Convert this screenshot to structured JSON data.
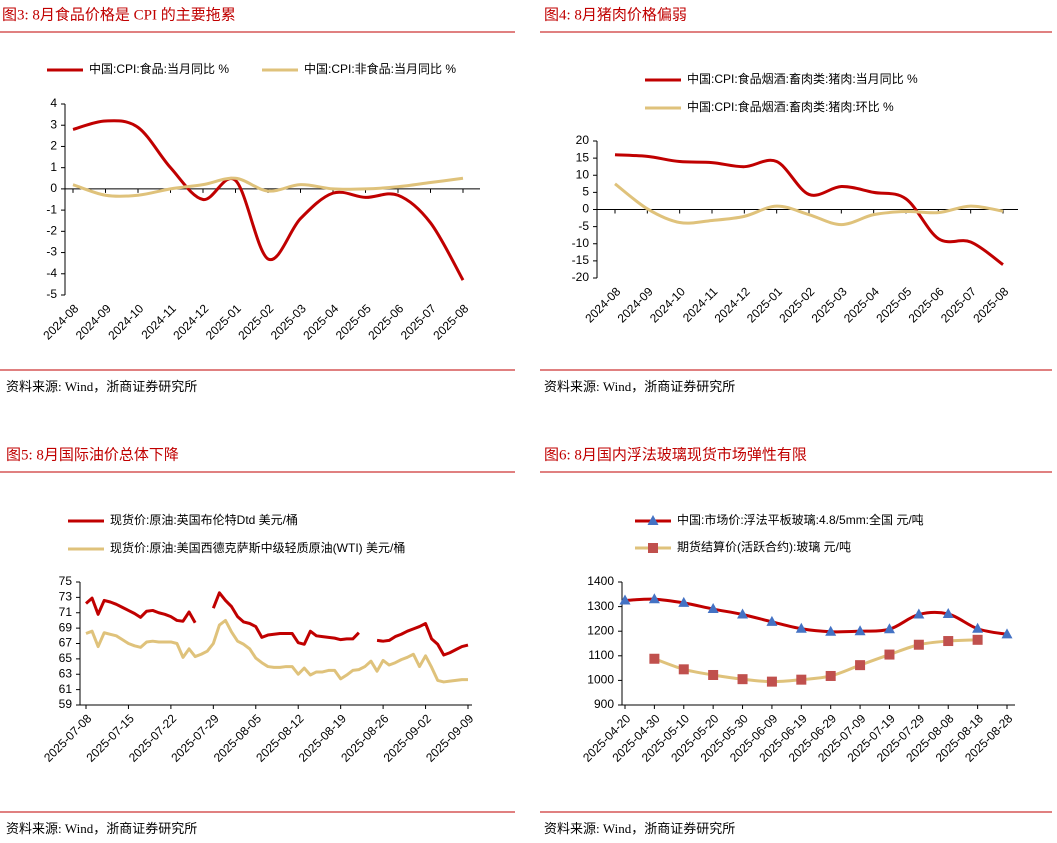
{
  "chart_data": [
    {
      "type": "line",
      "title": "图3:  8月食品价格是 CPI 的主要拖累",
      "source": "资料来源:  Wind，浙商证券研究所",
      "smooth": true,
      "categories": [
        "2024-08",
        "2024-09",
        "2024-10",
        "2024-11",
        "2024-12",
        "2025-01",
        "2025-02",
        "2025-03",
        "2025-04",
        "2025-05",
        "2025-06",
        "2025-07",
        "2025-08"
      ],
      "series": [
        {
          "name": "中国:CPI:食品:当月同比 %",
          "color": "#c00000",
          "values": [
            2.8,
            3.2,
            2.9,
            1.0,
            -0.5,
            0.4,
            -3.3,
            -1.4,
            -0.2,
            -0.4,
            -0.3,
            -1.6,
            -4.3
          ]
        },
        {
          "name": "中国:CPI:非食品:当月同比 %",
          "color": "#dfc27b",
          "values": [
            0.2,
            -0.3,
            -0.3,
            0.0,
            0.2,
            0.5,
            -0.1,
            0.2,
            0.0,
            0.0,
            0.1,
            0.3,
            0.5
          ]
        }
      ],
      "ylim": [
        -5,
        4
      ],
      "yticks": [
        -5,
        -4,
        -3,
        -2,
        -1,
        0,
        1,
        2,
        3,
        4
      ]
    },
    {
      "type": "line",
      "title": "图4:  8月猪肉价格偏弱",
      "source": "资料来源:  Wind，浙商证券研究所",
      "smooth": true,
      "categories": [
        "2024-08",
        "2024-09",
        "2024-10",
        "2024-11",
        "2024-12",
        "2025-01",
        "2025-02",
        "2025-03",
        "2025-04",
        "2025-05",
        "2025-06",
        "2025-07",
        "2025-08"
      ],
      "series": [
        {
          "name": "中国:CPI:食品烟酒:畜肉类:猪肉:当月同比 %",
          "color": "#c00000",
          "values": [
            16.0,
            15.5,
            14.0,
            13.7,
            12.5,
            14.0,
            4.4,
            6.7,
            5.0,
            3.1,
            -8.5,
            -9.5,
            -16.1
          ]
        },
        {
          "name": "中国:CPI:食品烟酒:畜肉类:猪肉:环比 %",
          "color": "#dfc27b",
          "values": [
            7.5,
            0.2,
            -3.8,
            -3.2,
            -2.0,
            1.0,
            -1.5,
            -4.4,
            -1.5,
            -0.6,
            -0.9,
            1.0,
            -0.5
          ]
        }
      ],
      "ylim": [
        -20,
        20
      ],
      "yticks": [
        -20,
        -15,
        -10,
        -5,
        0,
        5,
        10,
        15,
        20
      ]
    },
    {
      "type": "line",
      "title": "图5:  8月国际油价总体下降",
      "source": "资料来源:  Wind，浙商证券研究所",
      "smooth": false,
      "categories": [
        "2025-07-08",
        null,
        null,
        null,
        null,
        null,
        null,
        "2025-07-15",
        null,
        null,
        null,
        null,
        null,
        null,
        "2025-07-22",
        null,
        null,
        null,
        null,
        null,
        null,
        "2025-07-29",
        null,
        null,
        null,
        null,
        null,
        null,
        "2025-08-05",
        null,
        null,
        null,
        null,
        null,
        null,
        "2025-08-12",
        null,
        null,
        null,
        null,
        null,
        null,
        "2025-08-19",
        null,
        null,
        null,
        null,
        null,
        null,
        "2025-08-26",
        null,
        null,
        null,
        null,
        null,
        null,
        "2025-09-02",
        null,
        null,
        null,
        null,
        null,
        null,
        "2025-09-09"
      ],
      "series": [
        {
          "name": "现货价:原油:英国布伦特Dtd 美元/桶",
          "color": "#c00000",
          "values": [
            72.2,
            72.9,
            70.8,
            72.6,
            72.4,
            72.1,
            71.7,
            71.3,
            70.9,
            70.4,
            71.2,
            71.3,
            71.0,
            70.8,
            70.5,
            70.0,
            69.9,
            71.1,
            69.7,
            null,
            null,
            71.6,
            73.6,
            72.6,
            71.8,
            70.5,
            69.8,
            69.6,
            69.2,
            67.8,
            68.1,
            68.2,
            68.3,
            68.3,
            68.3,
            67.1,
            66.9,
            68.6,
            68.0,
            67.9,
            67.8,
            67.7,
            67.5,
            67.6,
            67.6,
            68.4,
            null,
            null,
            67.4,
            67.3,
            67.4,
            67.9,
            68.2,
            68.6,
            68.9,
            69.2,
            69.6,
            67.6,
            66.9,
            65.5,
            65.8,
            66.2,
            66.6,
            66.8
          ]
        },
        {
          "name": "现货价:原油:美国西德克萨斯中级轻质原油(WTI) 美元/桶",
          "color": "#dfc27b",
          "values": [
            68.3,
            68.6,
            66.6,
            68.4,
            68.2,
            68.0,
            67.5,
            67.0,
            66.7,
            66.5,
            67.2,
            67.3,
            67.2,
            67.2,
            67.2,
            67.0,
            65.2,
            66.3,
            65.3,
            65.6,
            66.0,
            67.0,
            69.4,
            70.0,
            68.5,
            67.3,
            66.9,
            66.3,
            65.1,
            64.5,
            64.0,
            63.9,
            63.9,
            64.0,
            64.0,
            63.0,
            63.8,
            62.9,
            63.3,
            63.3,
            63.5,
            63.5,
            62.4,
            62.9,
            63.5,
            63.6,
            64.0,
            64.7,
            63.4,
            64.8,
            64.2,
            64.5,
            64.9,
            65.2,
            65.6,
            64.0,
            65.4,
            63.9,
            62.2,
            62.0,
            62.1,
            62.2,
            62.3,
            62.3
          ]
        }
      ],
      "ylim": [
        59,
        75
      ],
      "yticks": [
        59,
        61,
        63,
        65,
        67,
        69,
        71,
        73,
        75
      ]
    },
    {
      "type": "line",
      "title": "图6:  8月国内浮法玻璃现货市场弹性有限",
      "source": "资料来源:  Wind，浙商证券研究所",
      "smooth": true,
      "categories": [
        "2025-04-20",
        "2025-04-30",
        "2025-05-10",
        "2025-05-20",
        "2025-05-30",
        "2025-06-09",
        "2025-06-19",
        "2025-06-29",
        "2025-07-09",
        "2025-07-19",
        "2025-07-29",
        "2025-08-08",
        "2025-08-18",
        "2025-08-28"
      ],
      "series": [
        {
          "name": "中国:市场价:浮法平板玻璃:4.8/5mm:全国 元/吨",
          "color": "#c00000",
          "marker": "triangle",
          "marker_color": "#4472c4",
          "values": [
            1325,
            1330,
            1315,
            1290,
            1268,
            1238,
            1210,
            1198,
            1200,
            1208,
            1268,
            1270,
            1210,
            1187
          ]
        },
        {
          "name": "期货结算价(活跃合约):玻璃 元/吨",
          "color": "#dfc27b",
          "marker": "square",
          "marker_color": "#c0504d",
          "values": [
            null,
            1088,
            1045,
            1022,
            1005,
            995,
            1003,
            1018,
            1062,
            1105,
            1145,
            1160,
            1165,
            null
          ]
        }
      ],
      "ylim": [
        900,
        1400
      ],
      "yticks": [
        900,
        1000,
        1100,
        1200,
        1300,
        1400
      ]
    }
  ]
}
